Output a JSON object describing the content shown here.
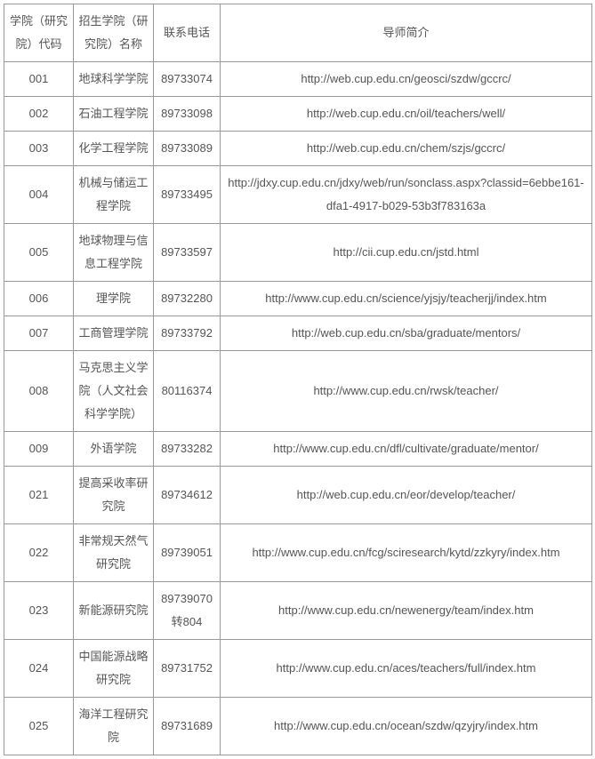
{
  "table": {
    "headers": {
      "code": "学院（研究院）代码",
      "name": "招生学院（研究院）名称",
      "phone": "联系电话",
      "intro": "导师简介"
    },
    "rows": [
      {
        "code": "001",
        "name": "地球科学学院",
        "phone": "89733074",
        "intro": "http://web.cup.edu.cn/geosci/szdw/gccrc/"
      },
      {
        "code": "002",
        "name": "石油工程学院",
        "phone": "89733098",
        "intro": "http://web.cup.edu.cn/oil/teachers/well/"
      },
      {
        "code": "003",
        "name": "化学工程学院",
        "phone": "89733089",
        "intro": "http://web.cup.edu.cn/chem/szjs/gccrc/"
      },
      {
        "code": "004",
        "name": "机械与储运工程学院",
        "phone": "89733495",
        "intro": "http://jdxy.cup.edu.cn/jdxy/web/run/sonclass.aspx?classid=6ebbe161-dfa1-4917-b029-53b3f783163a"
      },
      {
        "code": "005",
        "name": "地球物理与信息工程学院",
        "phone": "89733597",
        "intro": "http://cii.cup.edu.cn/jstd.html"
      },
      {
        "code": "006",
        "name": "理学院",
        "phone": "89732280",
        "intro": "http://www.cup.edu.cn/science/yjsjy/teacherjj/index.htm"
      },
      {
        "code": "007",
        "name": "工商管理学院",
        "phone": "89733792",
        "intro": "http://web.cup.edu.cn/sba/graduate/mentors/"
      },
      {
        "code": "008",
        "name": "马克思主义学院（人文社会科学学院）",
        "phone": "80116374",
        "intro": "http://www.cup.edu.cn/rwsk/teacher/"
      },
      {
        "code": "009",
        "name": "外语学院",
        "phone": "89733282",
        "intro": "http://www.cup.edu.cn/dfl/cultivate/graduate/mentor/"
      },
      {
        "code": "021",
        "name": "提高采收率研究院",
        "phone": "89734612",
        "intro": "http://web.cup.edu.cn/eor/develop/teacher/"
      },
      {
        "code": "022",
        "name": "非常规天然气研究院",
        "phone": "89739051",
        "intro": "http://www.cup.edu.cn/fcg/sciresearch/kytd/zzkyry/index.htm"
      },
      {
        "code": "023",
        "name": "新能源研究院",
        "phone": "89739070转804",
        "intro": "http://www.cup.edu.cn/newenergy/team/index.htm"
      },
      {
        "code": "024",
        "name": "中国能源战略研究院",
        "phone": "89731752",
        "intro": "http://www.cup.edu.cn/aces/teachers/full/index.htm"
      },
      {
        "code": "025",
        "name": "海洋工程研究院",
        "phone": "89731689",
        "intro": "http://www.cup.edu.cn/ocean/szdw/qzyjry/index.htm"
      }
    ],
    "column_widths": {
      "code": 78,
      "name": 90,
      "phone": 75,
      "intro": 418
    },
    "border_color": "#999999",
    "text_color": "#555555",
    "font_size": 13,
    "background_color": "#ffffff"
  }
}
